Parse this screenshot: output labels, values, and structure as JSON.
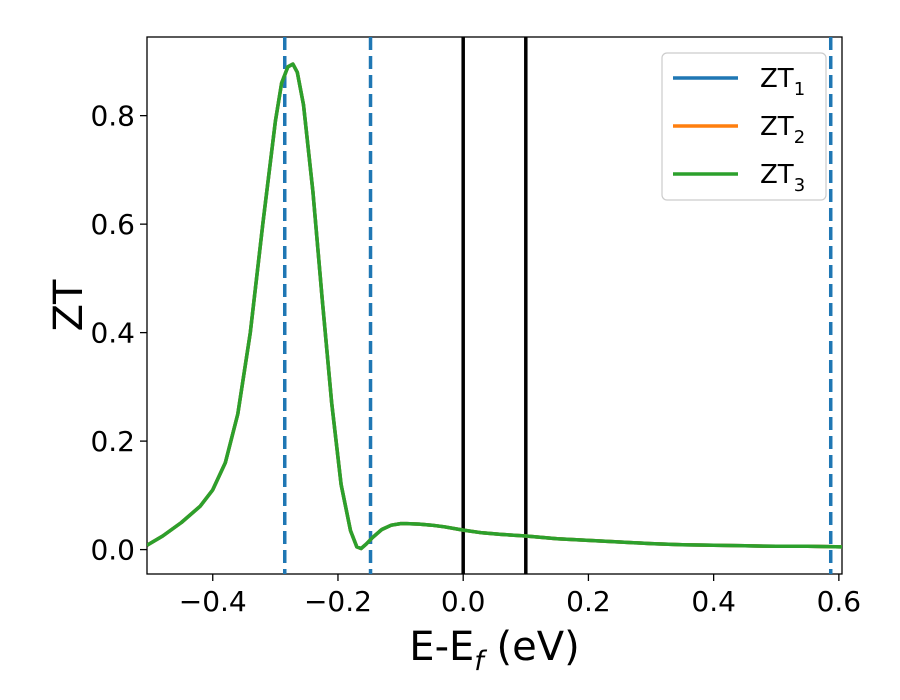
{
  "chart_data": {
    "type": "line",
    "xlabel": {
      "base": "E-E",
      "sub": "f",
      "suffix": " (eV)"
    },
    "ylabel": "ZT",
    "xlim": [
      -0.505,
      0.605
    ],
    "ylim": [
      -0.045,
      0.945
    ],
    "xticks": [
      -0.4,
      -0.2,
      0.0,
      0.2,
      0.4,
      0.6
    ],
    "xtick_labels": [
      "−0.4",
      "−0.2",
      "0.0",
      "0.2",
      "0.4",
      "0.6"
    ],
    "yticks": [
      0.0,
      0.2,
      0.4,
      0.6,
      0.8
    ],
    "ytick_labels": [
      "0.0",
      "0.2",
      "0.4",
      "0.6",
      "0.8"
    ],
    "grid": false,
    "legend_position": "top-right",
    "series": [
      {
        "name": "ZT",
        "sub": "1",
        "color": "#1f77b4"
      },
      {
        "name": "ZT",
        "sub": "2",
        "color": "#ff7f0e"
      },
      {
        "name": "ZT",
        "sub": "3",
        "color": "#2ca02c"
      }
    ],
    "x": [
      -0.505,
      -0.48,
      -0.45,
      -0.42,
      -0.4,
      -0.38,
      -0.36,
      -0.34,
      -0.32,
      -0.3,
      -0.29,
      -0.28,
      -0.272,
      -0.265,
      -0.255,
      -0.24,
      -0.225,
      -0.21,
      -0.195,
      -0.18,
      -0.17,
      -0.163,
      -0.155,
      -0.145,
      -0.13,
      -0.115,
      -0.1,
      -0.09,
      -0.07,
      -0.05,
      -0.03,
      0.0,
      0.03,
      0.06,
      0.1,
      0.15,
      0.2,
      0.25,
      0.3,
      0.35,
      0.4,
      0.45,
      0.5,
      0.55,
      0.605
    ],
    "y": [
      0.008,
      0.025,
      0.05,
      0.08,
      0.11,
      0.16,
      0.25,
      0.4,
      0.6,
      0.79,
      0.86,
      0.89,
      0.895,
      0.88,
      0.82,
      0.66,
      0.46,
      0.27,
      0.12,
      0.035,
      0.005,
      0.002,
      0.01,
      0.022,
      0.037,
      0.045,
      0.048,
      0.048,
      0.047,
      0.045,
      0.042,
      0.036,
      0.031,
      0.028,
      0.025,
      0.02,
      0.017,
      0.014,
      0.011,
      0.009,
      0.008,
      0.007,
      0.006,
      0.006,
      0.005
    ],
    "dashed_vlines": {
      "x": [
        -0.285,
        -0.148,
        0.587
      ],
      "color": "#1f77b4"
    },
    "solid_vlines": {
      "x": [
        0.0,
        0.1
      ],
      "color": "#000000"
    }
  }
}
